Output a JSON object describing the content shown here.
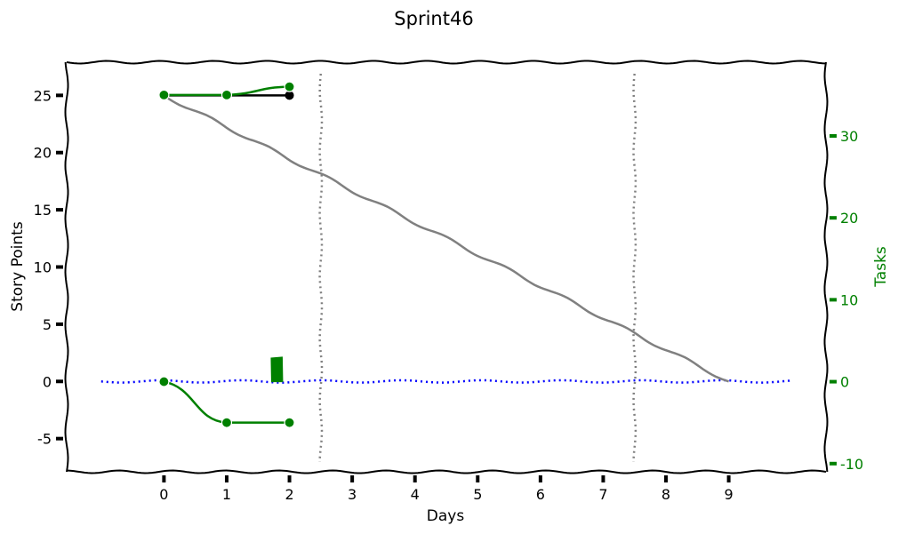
{
  "chart_data": {
    "type": "line",
    "title": "Sprint46",
    "xlabel": "Days",
    "ylabel": "Story Points",
    "y2label": "Tasks",
    "xticks": [
      0,
      1,
      2,
      3,
      4,
      5,
      6,
      7,
      8,
      9
    ],
    "yticks": [
      25,
      20,
      15,
      10,
      5,
      0,
      -5
    ],
    "y2ticks": [
      30,
      20,
      10,
      0,
      -10
    ],
    "xlim": [
      -1.55,
      10.55
    ],
    "ylim": [
      -7.9,
      27.9
    ],
    "y2lim": [
      -11.0,
      39.0
    ],
    "ideal_line": {
      "x": [
        0,
        9
      ],
      "y": [
        25,
        0
      ]
    },
    "zero_line": {
      "x": [
        -1,
        10
      ],
      "y": [
        0,
        0
      ]
    },
    "sprint_markers": [
      2.5,
      7.5
    ],
    "story_points_done": {
      "x": [
        0,
        1,
        2
      ],
      "y": [
        25,
        25,
        25
      ]
    },
    "tasks_total": {
      "x": [
        0,
        1,
        2
      ],
      "y": [
        35,
        35,
        36
      ]
    },
    "tasks_removed": {
      "x": [
        0,
        1,
        2
      ],
      "y": [
        0,
        -5,
        -5
      ]
    },
    "tasks_today_bar": {
      "x": 1.8,
      "y": [
        0,
        3
      ]
    },
    "colors": {
      "ideal": "#808080",
      "story_points": "#000000",
      "tasks": "#008000",
      "zero": "#0000ff",
      "markers": "#808080"
    }
  }
}
